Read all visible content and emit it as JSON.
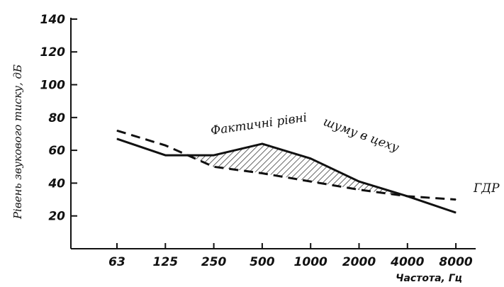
{
  "chart_data": {
    "type": "line",
    "title": "",
    "xlabel": "Частота, Гц",
    "ylabel": "Рівень звукового тиску, дБ",
    "categories": [
      "63",
      "125",
      "250",
      "500",
      "1000",
      "2000",
      "4000",
      "8000"
    ],
    "y_ticks": [
      20,
      40,
      60,
      80,
      100,
      120,
      140
    ],
    "ylim": [
      0,
      140
    ],
    "grid": false,
    "series": [
      {
        "style": "solid",
        "x": [
          "63",
          "125",
          "250",
          "500",
          "1000",
          "2000",
          "4000",
          "8000"
        ],
        "values": [
          67,
          57,
          57,
          64,
          55,
          41,
          32,
          22
        ]
      },
      {
        "style": "dashed",
        "x": [
          "63",
          "125",
          "250",
          "500",
          "1000",
          "2000",
          "4000",
          "8000"
        ],
        "values": [
          72,
          63,
          50,
          46,
          41,
          36,
          32,
          30
        ]
      }
    ],
    "annotations": [
      {
        "text": "Фактичні рівні"
      },
      {
        "text": "шуму в цеху"
      },
      {
        "text": "ГДР"
      }
    ],
    "shaded_region": "hatched area where solid line exceeds dashed line"
  }
}
